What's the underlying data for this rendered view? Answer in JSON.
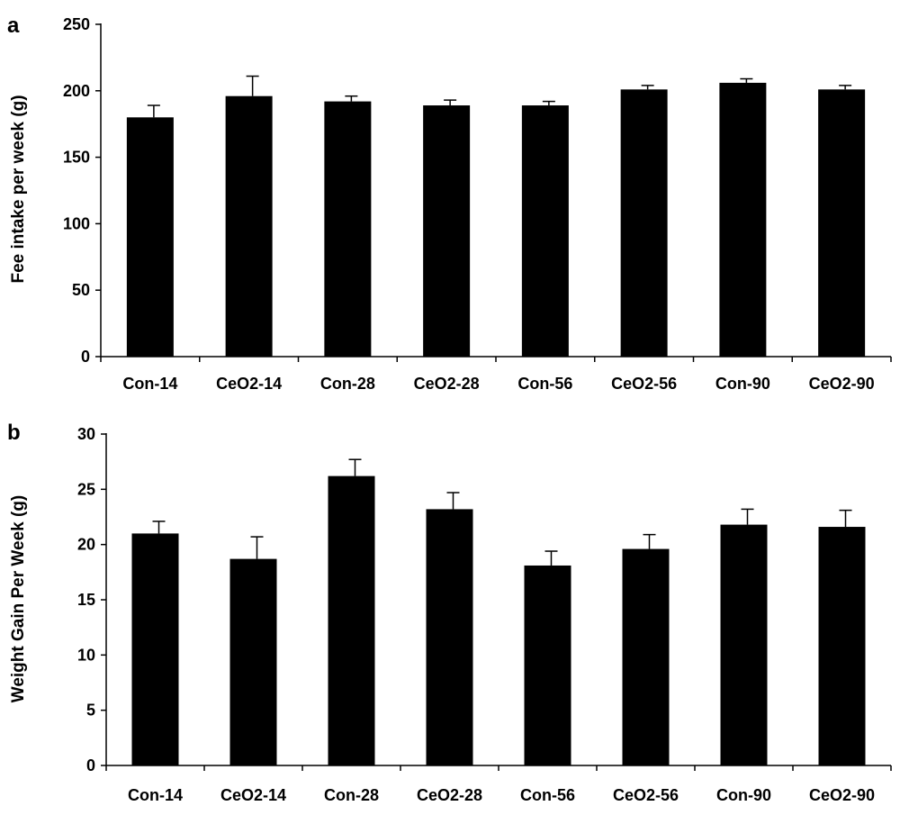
{
  "chart_data": [
    {
      "panel": "a",
      "type": "bar",
      "categories": [
        "Con-14",
        "CeO2-14",
        "Con-28",
        "CeO2-28",
        "Con-56",
        "CeO2-56",
        "Con-90",
        "CeO2-90"
      ],
      "values": [
        180,
        196,
        192,
        189,
        189,
        201,
        206,
        201
      ],
      "errors": [
        9,
        15,
        4,
        4,
        3,
        3,
        3,
        3
      ],
      "title": "",
      "xlabel": "",
      "ylabel": "Fee intake per week (g)",
      "ylim": [
        0,
        250
      ],
      "yticks": [
        0,
        50,
        100,
        150,
        200,
        250
      ],
      "bar_color": "#000000",
      "grid": false,
      "legend": "none"
    },
    {
      "panel": "b",
      "type": "bar",
      "categories": [
        "Con-14",
        "CeO2-14",
        "Con-28",
        "CeO2-28",
        "Con-56",
        "CeO2-56",
        "Con-90",
        "CeO2-90"
      ],
      "values": [
        21.0,
        18.7,
        26.2,
        23.2,
        18.1,
        19.6,
        21.8,
        21.6
      ],
      "errors": [
        1.1,
        2.0,
        1.5,
        1.5,
        1.3,
        1.3,
        1.4,
        1.5
      ],
      "title": "",
      "xlabel": "",
      "ylabel": "Weight Gain Per Week (g)",
      "ylim": [
        0,
        30
      ],
      "yticks": [
        0,
        5,
        10,
        15,
        20,
        25,
        30
      ],
      "bar_color": "#000000",
      "grid": false,
      "legend": "none"
    }
  ]
}
